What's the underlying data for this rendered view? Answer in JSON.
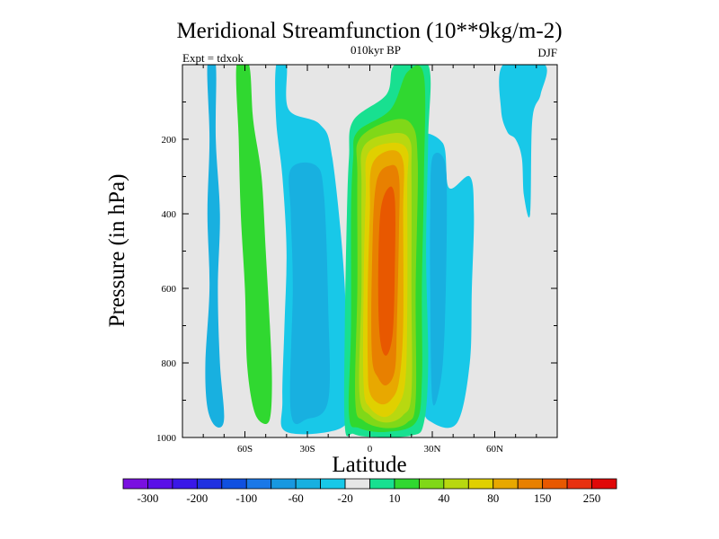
{
  "chart_data": {
    "type": "heatmap",
    "title": "Meridional Streamfunction (10**9kg/m-2)",
    "subtitle": "010kyr BP",
    "left_label": "Expt = tdxok",
    "right_label": "DJF",
    "xlabel": "Latitude",
    "ylabel": "Pressure (in hPa)",
    "xlim": [
      -90,
      90
    ],
    "ylim": [
      0,
      1000
    ],
    "y_reversed": true,
    "x_ticks": [
      {
        "value": -60,
        "label": "60S"
      },
      {
        "value": -30,
        "label": "30S"
      },
      {
        "value": 0,
        "label": "0"
      },
      {
        "value": 30,
        "label": "30N"
      },
      {
        "value": 60,
        "label": "60N"
      }
    ],
    "y_ticks": [
      {
        "value": 200,
        "label": "200"
      },
      {
        "value": 400,
        "label": "400"
      },
      {
        "value": 600,
        "label": "600"
      },
      {
        "value": 800,
        "label": "800"
      },
      {
        "value": 1000,
        "label": "1000"
      }
    ],
    "colorbar": {
      "colors": [
        "#7a10e0",
        "#5a10e8",
        "#3a18e8",
        "#2030e0",
        "#1050e0",
        "#1a78e8",
        "#1898e0",
        "#18b0e0",
        "#18c8e8",
        "#e6e6e6",
        "#18e090",
        "#30d830",
        "#80d818",
        "#b8d810",
        "#e0d000",
        "#e8a800",
        "#e88000",
        "#e85800",
        "#e83010",
        "#e00808"
      ],
      "labels": [
        {
          "after": 1,
          "label": "-300"
        },
        {
          "after": 3,
          "label": "-200"
        },
        {
          "after": 5,
          "label": "-100"
        },
        {
          "after": 7,
          "label": "-60"
        },
        {
          "after": 9,
          "label": "-20"
        },
        {
          "after": 11,
          "label": "10"
        },
        {
          "after": 13,
          "label": "40"
        },
        {
          "after": 15,
          "label": "80"
        },
        {
          "after": 17,
          "label": "150"
        },
        {
          "after": 19,
          "label": "250"
        }
      ]
    },
    "background_color": "#e6e6e6",
    "contours": [
      {
        "name": "neg-60S-band",
        "color": "#18b0e0",
        "points": [
          [
            -78,
            0
          ],
          [
            -74,
            0
          ],
          [
            -74,
            200
          ],
          [
            -72,
            400
          ],
          [
            -73,
            600
          ],
          [
            -72,
            800
          ],
          [
            -70,
            950
          ],
          [
            -74,
            970
          ],
          [
            -78,
            920
          ],
          [
            -79,
            800
          ],
          [
            -77,
            600
          ],
          [
            -78,
            400
          ],
          [
            -77,
            200
          ]
        ]
      },
      {
        "name": "pos-55S-band",
        "color": "#30d830",
        "points": [
          [
            -64,
            0
          ],
          [
            -58,
            0
          ],
          [
            -56,
            150
          ],
          [
            -52,
            300
          ],
          [
            -50,
            500
          ],
          [
            -48,
            700
          ],
          [
            -47,
            850
          ],
          [
            -48,
            950
          ],
          [
            -52,
            960
          ],
          [
            -56,
            920
          ],
          [
            -59,
            800
          ],
          [
            -60,
            600
          ],
          [
            -62,
            400
          ],
          [
            -63,
            200
          ]
        ]
      },
      {
        "name": "neg-35S-outer",
        "color": "#18c8e8",
        "points": [
          [
            -45,
            0
          ],
          [
            -40,
            0
          ],
          [
            -39,
            120
          ],
          [
            -24,
            160
          ],
          [
            -18,
            250
          ],
          [
            -12,
            600
          ],
          [
            -12,
            900
          ],
          [
            -14,
            975
          ],
          [
            -40,
            985
          ],
          [
            -42,
            900
          ],
          [
            -41,
            700
          ],
          [
            -40,
            500
          ],
          [
            -42,
            300
          ],
          [
            -45,
            150
          ]
        ]
      },
      {
        "name": "neg-35S-mid",
        "color": "#18b0e0",
        "points": [
          [
            -38,
            280
          ],
          [
            -26,
            270
          ],
          [
            -22,
            350
          ],
          [
            -20,
            650
          ],
          [
            -20,
            900
          ],
          [
            -30,
            950
          ],
          [
            -38,
            930
          ],
          [
            -37,
            600
          ],
          [
            -38,
            400
          ]
        ]
      },
      {
        "name": "neg-55N-outer",
        "color": "#18c8e8",
        "points": [
          [
            22,
            200
          ],
          [
            35,
            210
          ],
          [
            38,
            330
          ],
          [
            48,
            300
          ],
          [
            50,
            400
          ],
          [
            49,
            600
          ],
          [
            48,
            800
          ],
          [
            42,
            960
          ],
          [
            30,
            960
          ],
          [
            25,
            900
          ],
          [
            24,
            650
          ],
          [
            22,
            400
          ]
        ]
      },
      {
        "name": "neg-55N-mid",
        "color": "#18b0e0",
        "points": [
          [
            30,
            250
          ],
          [
            36,
            260
          ],
          [
            37,
            400
          ],
          [
            36,
            700
          ],
          [
            34,
            850
          ],
          [
            30,
            900
          ],
          [
            29,
            600
          ],
          [
            29,
            400
          ]
        ]
      },
      {
        "name": "neg-80N-band",
        "color": "#18c8e8",
        "points": [
          [
            64,
            0
          ],
          [
            84,
            0
          ],
          [
            82,
            80
          ],
          [
            78,
            150
          ],
          [
            77,
            400
          ],
          [
            74,
            350
          ],
          [
            73,
            250
          ],
          [
            70,
            200
          ],
          [
            66,
            180
          ],
          [
            63,
            120
          ]
        ]
      },
      {
        "name": "pos-10N-10",
        "color": "#18e090",
        "points": [
          [
            -8,
            150
          ],
          [
            8,
            80
          ],
          [
            12,
            0
          ],
          [
            28,
            0
          ],
          [
            28,
            200
          ],
          [
            27,
            500
          ],
          [
            28,
            800
          ],
          [
            26,
            960
          ],
          [
            20,
            995
          ],
          [
            0,
            998
          ],
          [
            -8,
            990
          ],
          [
            -12,
            970
          ],
          [
            -12,
            700
          ],
          [
            -11,
            400
          ],
          [
            -10,
            250
          ]
        ]
      },
      {
        "name": "pos-10N-40",
        "color": "#30d830",
        "points": [
          [
            -6,
            180
          ],
          [
            10,
            120
          ],
          [
            18,
            20
          ],
          [
            26,
            30
          ],
          [
            26,
            300
          ],
          [
            25,
            600
          ],
          [
            25,
            850
          ],
          [
            22,
            960
          ],
          [
            8,
            985
          ],
          [
            -5,
            975
          ],
          [
            -10,
            940
          ],
          [
            -9,
            700
          ],
          [
            -9,
            400
          ],
          [
            -8,
            250
          ]
        ]
      },
      {
        "name": "pos-10N-80",
        "color": "#80d818",
        "points": [
          [
            -5,
            200
          ],
          [
            10,
            150
          ],
          [
            20,
            160
          ],
          [
            23,
            260
          ],
          [
            22,
            600
          ],
          [
            22,
            900
          ],
          [
            18,
            960
          ],
          [
            8,
            975
          ],
          [
            -3,
            955
          ],
          [
            -7,
            900
          ],
          [
            -6,
            600
          ],
          [
            -6,
            300
          ]
        ]
      },
      {
        "name": "pos-10N-100",
        "color": "#b8d810",
        "points": [
          [
            -3,
            220
          ],
          [
            10,
            185
          ],
          [
            19,
            200
          ],
          [
            20,
            300
          ],
          [
            20,
            600
          ],
          [
            20,
            880
          ],
          [
            16,
            940
          ],
          [
            8,
            960
          ],
          [
            0,
            940
          ],
          [
            -5,
            880
          ],
          [
            -4,
            600
          ],
          [
            -4,
            330
          ]
        ]
      },
      {
        "name": "pos-10N-150",
        "color": "#e0d000",
        "points": [
          [
            -1,
            240
          ],
          [
            10,
            210
          ],
          [
            18,
            230
          ],
          [
            18,
            330
          ],
          [
            18,
            650
          ],
          [
            17,
            850
          ],
          [
            13,
            920
          ],
          [
            7,
            945
          ],
          [
            0,
            920
          ],
          [
            -3,
            860
          ],
          [
            -3,
            600
          ],
          [
            -2,
            350
          ]
        ]
      },
      {
        "name": "pos-10N-200",
        "color": "#e8a800",
        "points": [
          [
            1,
            270
          ],
          [
            10,
            230
          ],
          [
            16,
            260
          ],
          [
            16,
            400
          ],
          [
            16,
            700
          ],
          [
            14,
            850
          ],
          [
            10,
            900
          ],
          [
            5,
            910
          ],
          [
            0,
            880
          ],
          [
            -1,
            800
          ],
          [
            -1,
            600
          ],
          [
            0,
            400
          ]
        ]
      },
      {
        "name": "pos-10N-250",
        "color": "#e88000",
        "points": [
          [
            3,
            320
          ],
          [
            10,
            270
          ],
          [
            14,
            300
          ],
          [
            14,
            450
          ],
          [
            13,
            700
          ],
          [
            12,
            820
          ],
          [
            8,
            860
          ],
          [
            4,
            840
          ],
          [
            1,
            780
          ],
          [
            1,
            550
          ]
        ]
      },
      {
        "name": "pos-10N-300",
        "color": "#e85800",
        "points": [
          [
            5,
            400
          ],
          [
            9,
            330
          ],
          [
            12,
            360
          ],
          [
            12,
            550
          ],
          [
            11,
            720
          ],
          [
            8,
            780
          ],
          [
            5,
            740
          ],
          [
            4,
            600
          ]
        ]
      }
    ]
  }
}
